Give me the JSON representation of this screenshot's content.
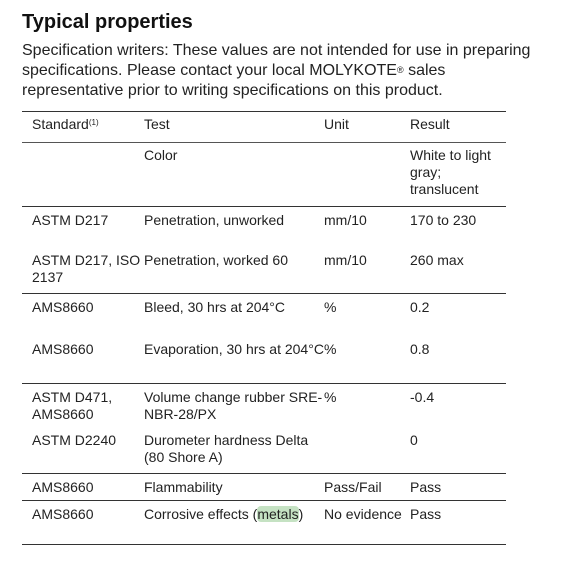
{
  "title": "Typical properties",
  "intro": {
    "text": "Specification writers: These values are not intended for use in preparing specifications. Please contact your local MOLYKOTE",
    "reg_mark": "®",
    "text_after": " sales representative prior to writing specifications on this product."
  },
  "table": {
    "headers": {
      "standard": "Standard",
      "standard_footnote": "(1)",
      "test": "Test",
      "unit": "Unit",
      "result": "Result"
    },
    "rows": [
      {
        "standard": "",
        "test": "Color",
        "unit": "",
        "result": "White to light gray; translucent"
      },
      {
        "standard": "ASTM D217",
        "test": "Penetration, unworked",
        "unit": "mm/10",
        "result": "170 to 230"
      },
      {
        "standard": "ASTM D217, ISO 2137",
        "test": "Penetration, worked 60",
        "unit": "mm/10",
        "result": "260 max"
      },
      {
        "standard": "AMS8660",
        "test": "Bleed, 30 hrs at 204°C",
        "unit": "%",
        "result": "0.2"
      },
      {
        "standard": "AMS8660",
        "test": "Evaporation, 30 hrs at 204°C",
        "unit": "%",
        "result": "0.8"
      },
      {
        "standard": "ASTM D471, AMS8660",
        "test": "Volume change rubber SRE-NBR-28/PX",
        "unit": "%",
        "result": "-0.4"
      },
      {
        "standard": "ASTM D2240",
        "test": "Durometer hardness Delta (80 Shore A)",
        "unit": "",
        "result": "0"
      },
      {
        "standard": "AMS8660",
        "test": "Flammability",
        "unit": "Pass/Fail",
        "result": "Pass"
      },
      {
        "standard": "AMS8660",
        "test_prefix": "Corrosive effects (",
        "test_highlight": "metals",
        "test_suffix": ")",
        "unit": "No evidence",
        "result": "Pass"
      }
    ]
  }
}
